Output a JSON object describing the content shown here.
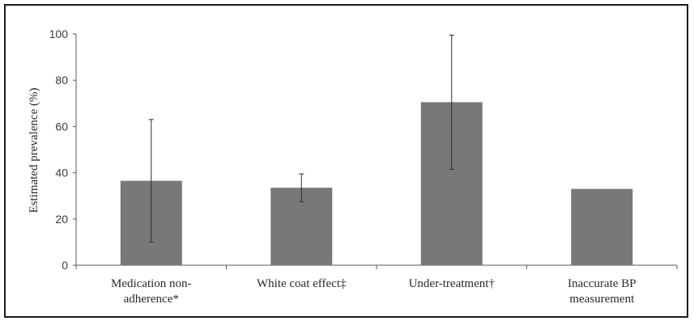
{
  "chart_data": {
    "type": "bar",
    "title": "",
    "xlabel": "",
    "ylabel": "Estimated prevalence (%)",
    "ylim": [
      0,
      100
    ],
    "yticks": [
      0,
      20,
      40,
      60,
      80,
      100
    ],
    "categories": [
      [
        "Medication non-",
        "adherence*"
      ],
      [
        "White coat effect‡"
      ],
      [
        "Under-treatment†"
      ],
      [
        "Inaccurate BP",
        "measurement"
      ]
    ],
    "values": [
      36.5,
      33.5,
      70.5,
      33
    ],
    "error_bars": [
      {
        "low": 10,
        "high": 63
      },
      {
        "low": 27.5,
        "high": 39.5
      },
      {
        "low": 41.5,
        "high": 99.5
      },
      null
    ],
    "bar_color": "#787878",
    "grid": false,
    "legend": "none"
  }
}
